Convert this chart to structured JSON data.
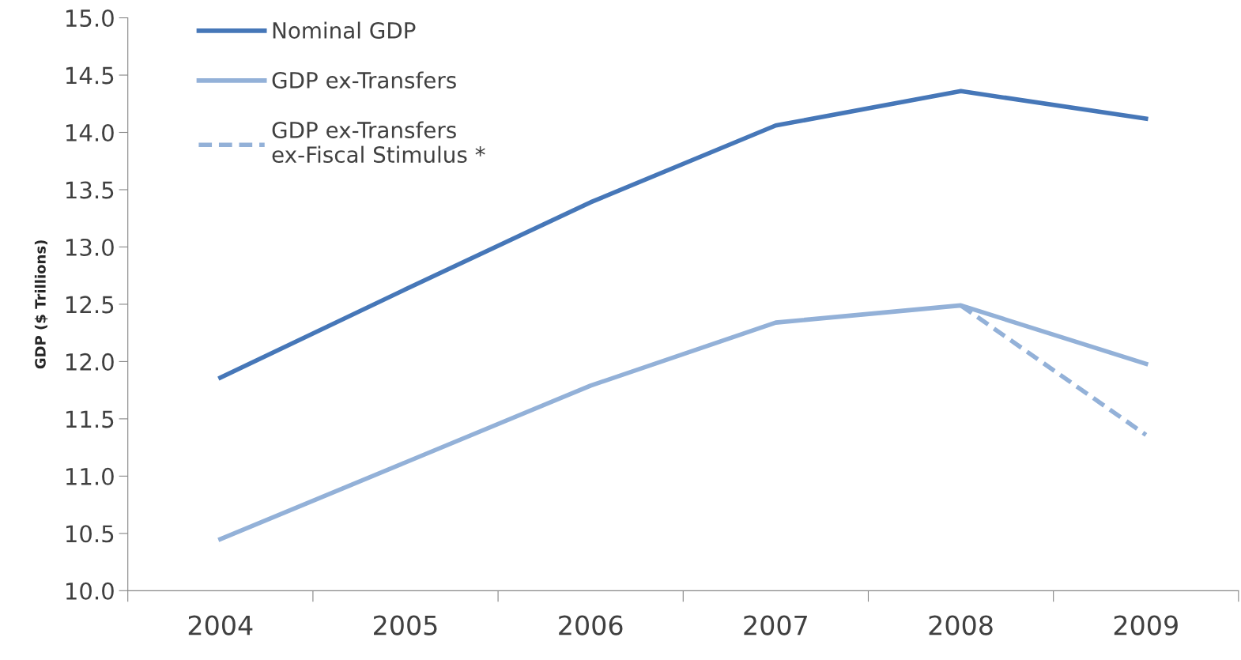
{
  "chart_data": {
    "type": "line",
    "ylabel": "GDP ($ Trillions)",
    "categories": [
      "2004",
      "2005",
      "2006",
      "2007",
      "2008",
      "2009"
    ],
    "series": [
      {
        "name": "Nominal GDP",
        "color": "#4677b8",
        "values": [
          11.86,
          12.63,
          13.39,
          14.06,
          14.36,
          14.12
        ]
      },
      {
        "name": "GDP ex-Transfers",
        "color": "#93b1d8",
        "values": [
          10.45,
          11.12,
          11.79,
          12.34,
          12.49,
          11.98
        ]
      },
      {
        "name": "GDP ex-Transfers ex-Fiscal Stimulus *",
        "color": "#93b1d8",
        "line_style": "dashed",
        "values": [
          null,
          null,
          null,
          null,
          12.49,
          11.36
        ]
      }
    ],
    "ylim": [
      10.0,
      15.0
    ],
    "yticks": [
      {
        "value": 10,
        "label": "10.0"
      },
      {
        "value": 10.5,
        "label": "10.5"
      },
      {
        "value": 11,
        "label": "11.0"
      },
      {
        "value": 11.5,
        "label": "11.5"
      },
      {
        "value": 12,
        "label": "12.0"
      },
      {
        "value": 12.5,
        "label": "12.5"
      },
      {
        "value": 13,
        "label": "13.0"
      },
      {
        "value": 13.5,
        "label": "13.5"
      },
      {
        "value": 14,
        "label": "14.0"
      },
      {
        "value": 14.5,
        "label": "14.5"
      },
      {
        "value": 15,
        "label": "15.0"
      }
    ],
    "grid": false,
    "legend": "top left",
    "marker": "none",
    "line_style": "solid"
  }
}
